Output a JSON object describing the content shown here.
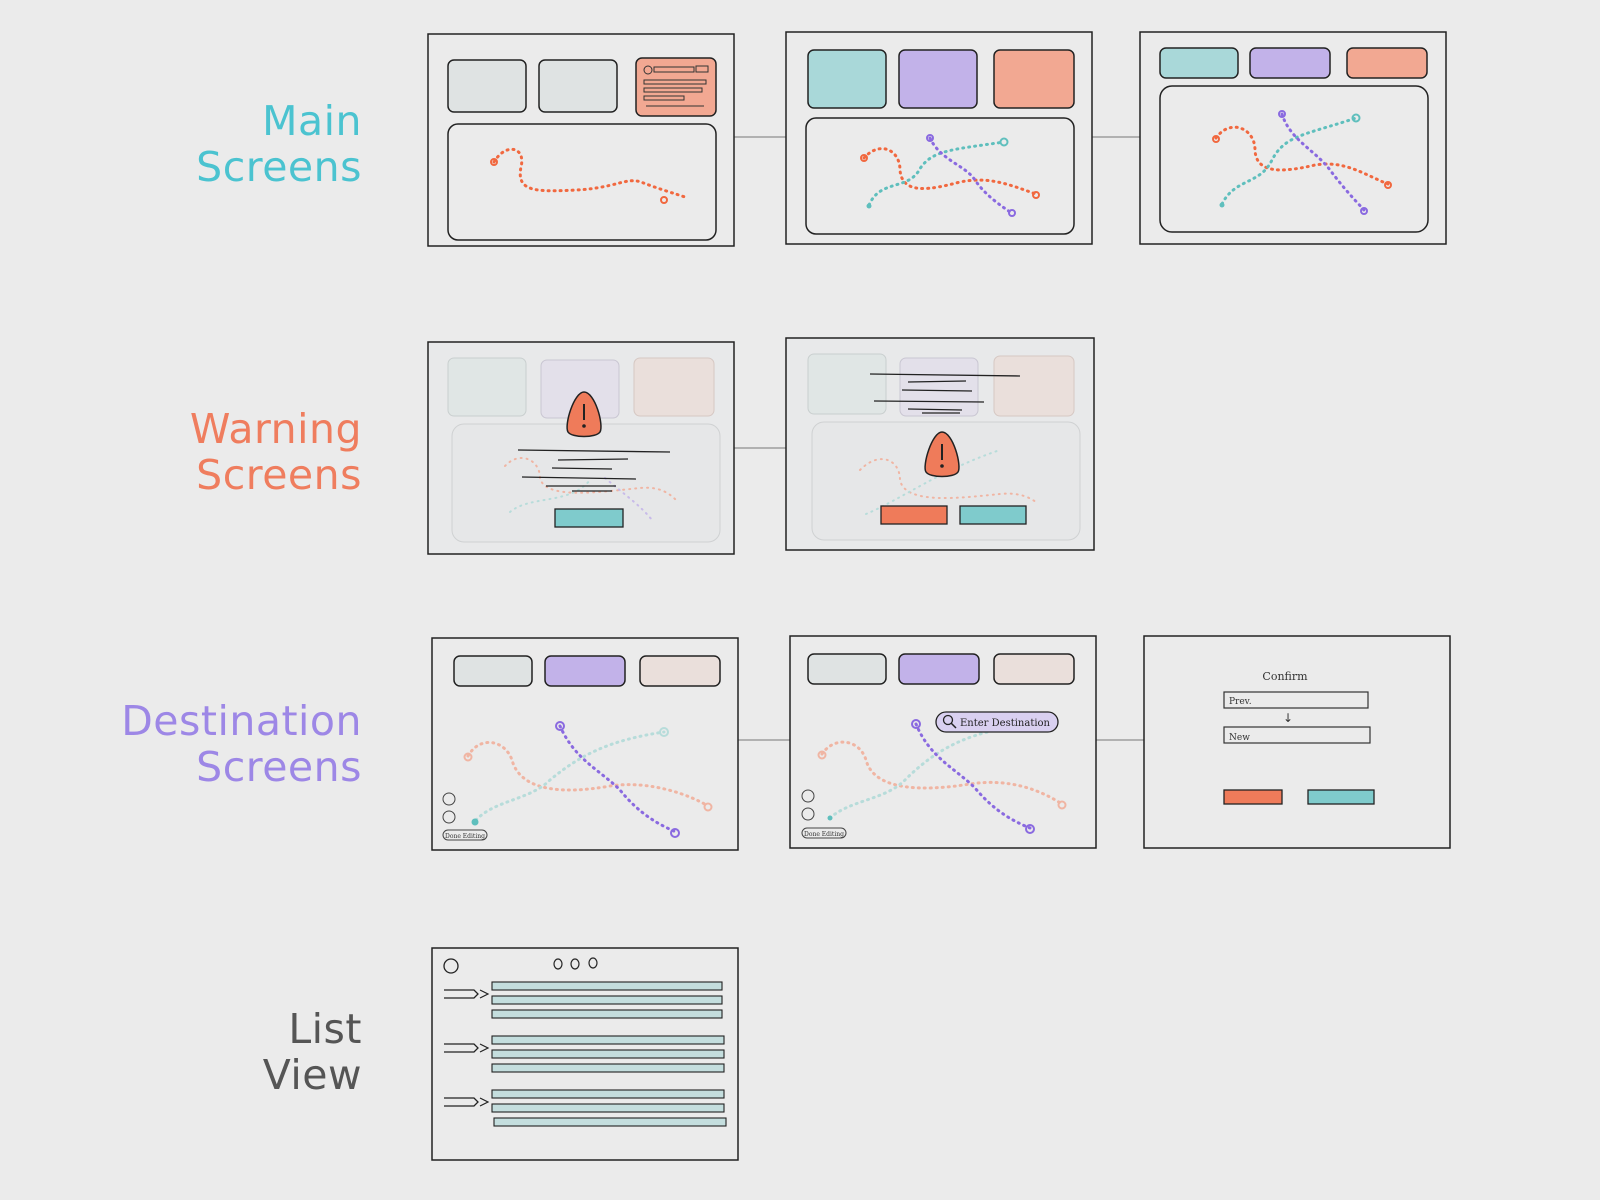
{
  "colors": {
    "teal": "#4bc3d0",
    "coral": "#ef7d5e",
    "purple": "#9d87e6",
    "gray": "#555555",
    "background": "#ebebeb",
    "route_coral": "#f1683f",
    "route_teal": "#5fbfbd",
    "route_purple": "#8a6ae0",
    "card_gray": "#dfe3e3",
    "card_teal": "#a9d8d9",
    "card_purple": "#c2b2e9",
    "card_coral": "#f2a892",
    "button_coral": "#ef7b5a",
    "button_teal": "#7fcbcc"
  },
  "rows": {
    "main": {
      "line1": "Main",
      "line2": "Screens",
      "color": "#4bc3d0"
    },
    "warning": {
      "line1": "Warning",
      "line2": "Screens",
      "color": "#ef7d5e"
    },
    "destination": {
      "line1": "Destination",
      "line2": "Screens",
      "color": "#9d87e6"
    },
    "list": {
      "line1": "List",
      "line2": "View",
      "color": "#555555"
    }
  },
  "sketch_text": {
    "enter_destination": "Enter Destination",
    "confirm": "Confirm",
    "prev": "Prev.",
    "new": "New",
    "arrow": "↓",
    "done_editing": "Done Editing"
  },
  "icons": {
    "warning": "warning-triangle-icon",
    "search": "search-icon",
    "list_arrow": "arrow-right-icon"
  }
}
